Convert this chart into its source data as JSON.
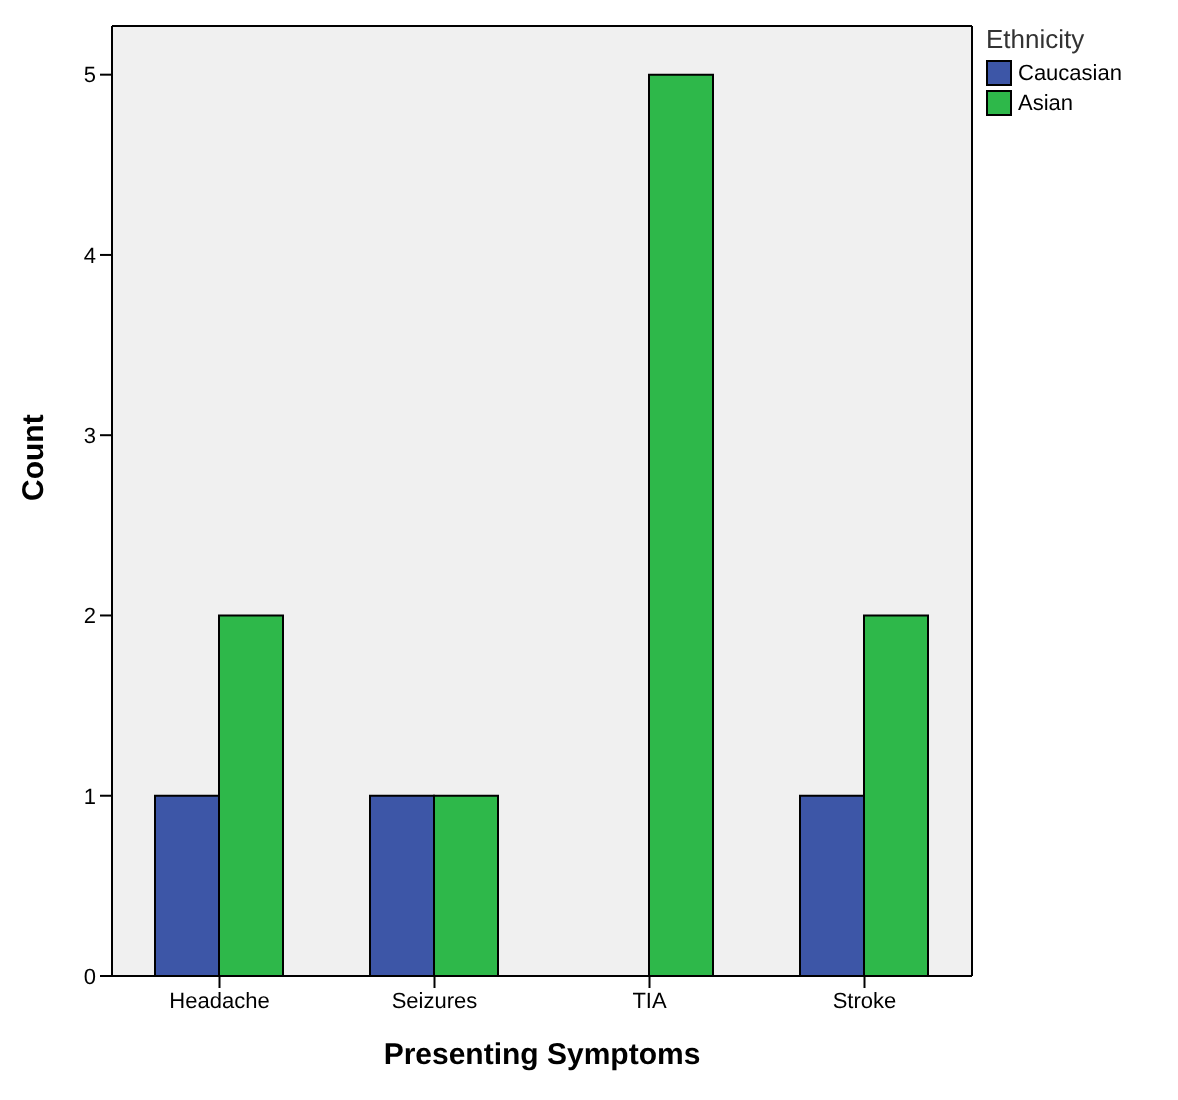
{
  "chart_data": {
    "type": "bar",
    "xlabel": "Presenting Symptoms",
    "ylabel": "Count",
    "legend_title": "Ethnicity",
    "categories": [
      "Headache",
      "Seizures",
      "TIA",
      "Stroke"
    ],
    "series": [
      {
        "name": "Caucasian",
        "color": "#3d56a7",
        "values": [
          1,
          1,
          0,
          1
        ]
      },
      {
        "name": "Asian",
        "color": "#2eb84a",
        "values": [
          2,
          1,
          5,
          2
        ]
      }
    ],
    "ylim": [
      0,
      5.27
    ],
    "yticks": [
      0,
      1,
      2,
      3,
      4,
      5
    ],
    "grid": false,
    "legend": "top right"
  }
}
